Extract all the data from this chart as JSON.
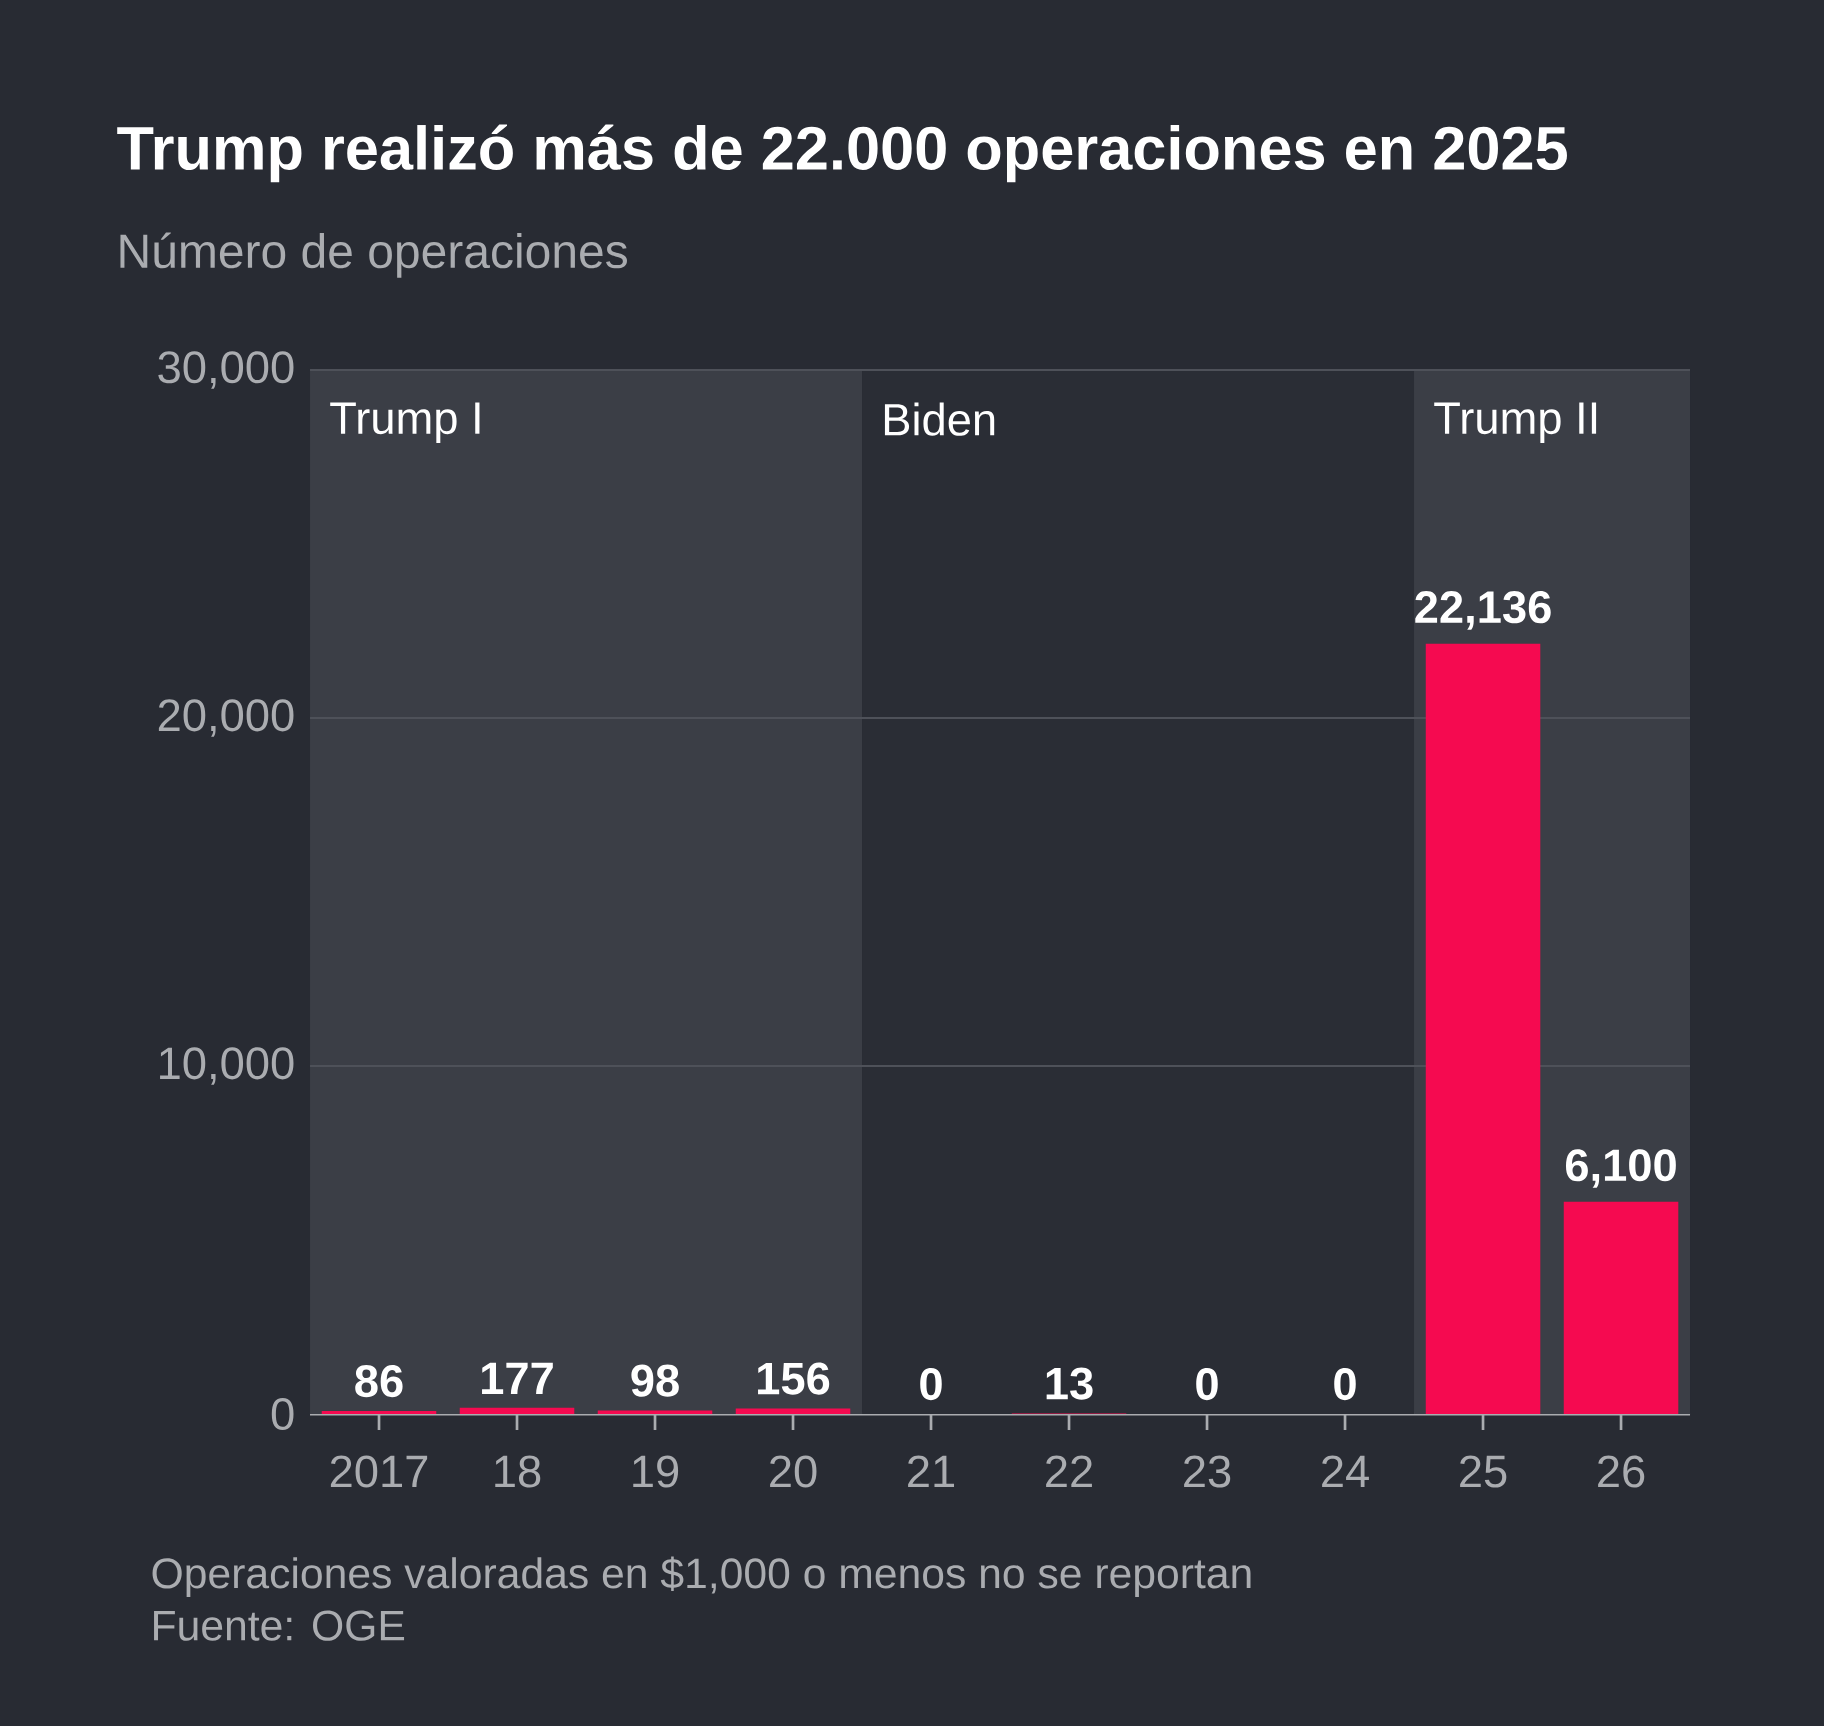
{
  "chart_data": {
    "type": "bar",
    "title": "Trump realizó más de 22.000 operaciones en 2025",
    "subtitle": "Número de operaciones",
    "categories": [
      "2017",
      "18",
      "19",
      "20",
      "21",
      "22",
      "23",
      "24",
      "25",
      "26"
    ],
    "values": [
      86,
      177,
      98,
      156,
      0,
      13,
      0,
      0,
      22136,
      6100
    ],
    "value_labels": [
      "86",
      "177",
      "98",
      "156",
      "0",
      "13",
      "0",
      "0",
      "22,136",
      "6,100"
    ],
    "color": "#f50a50",
    "ylim": [
      0,
      30000
    ],
    "yticks": [
      {
        "value": 0,
        "label": "0"
      },
      {
        "value": 10000,
        "label": "10,000"
      },
      {
        "value": 20000,
        "label": "20,000"
      },
      {
        "value": 30000,
        "label": "30,000"
      }
    ],
    "grid": "y",
    "bands": [
      {
        "axis": "x",
        "from": "2017",
        "to": "20",
        "label": "Trump I",
        "color": "#3b3e46"
      },
      {
        "axis": "x",
        "from": "21",
        "to": "24",
        "label": "Biden",
        "color": "#2a2d35"
      },
      {
        "axis": "x",
        "from": "25",
        "to": "26",
        "label": "Trump II",
        "color": "#3b3e46"
      }
    ],
    "annotations": [
      "Operaciones valoradas en $1,000 o menos no se reportan",
      "Fuente: OGE"
    ]
  }
}
